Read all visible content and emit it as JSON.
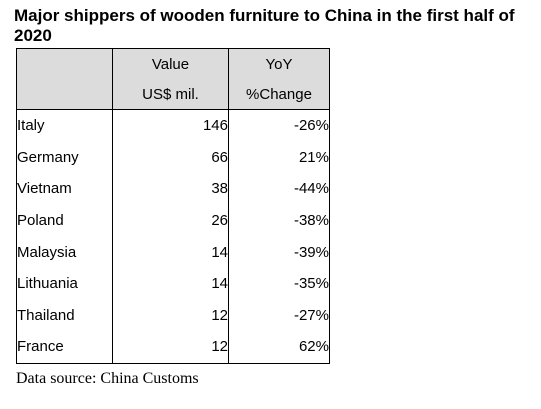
{
  "title": "Major shippers of wooden furniture to China in the first half of 2020",
  "chart_data": {
    "type": "table",
    "title": "Major shippers of wooden furniture to China in the first half of 2020",
    "columns": [
      {
        "header_line1": "",
        "header_line2": ""
      },
      {
        "header_line1": "Value",
        "header_line2": "US$ mil."
      },
      {
        "header_line1": "YoY",
        "header_line2": "%Change"
      }
    ],
    "rows": [
      {
        "country": "Italy",
        "value": "146",
        "change": "-26%"
      },
      {
        "country": "Germany",
        "value": "66",
        "change": "21%"
      },
      {
        "country": "Vietnam",
        "value": "38",
        "change": "-44%"
      },
      {
        "country": "Poland",
        "value": "26",
        "change": "-38%"
      },
      {
        "country": "Malaysia",
        "value": "14",
        "change": "-39%"
      },
      {
        "country": "Lithuania",
        "value": "14",
        "change": "-35%"
      },
      {
        "country": "Thailand",
        "value": "12",
        "change": "-27%"
      },
      {
        "country": "France",
        "value": "12",
        "change": "62%"
      }
    ],
    "source": "Data source: China Customs"
  },
  "colors": {
    "header_bg": "#dcdcdc",
    "border": "#000000",
    "text": "#000000"
  }
}
